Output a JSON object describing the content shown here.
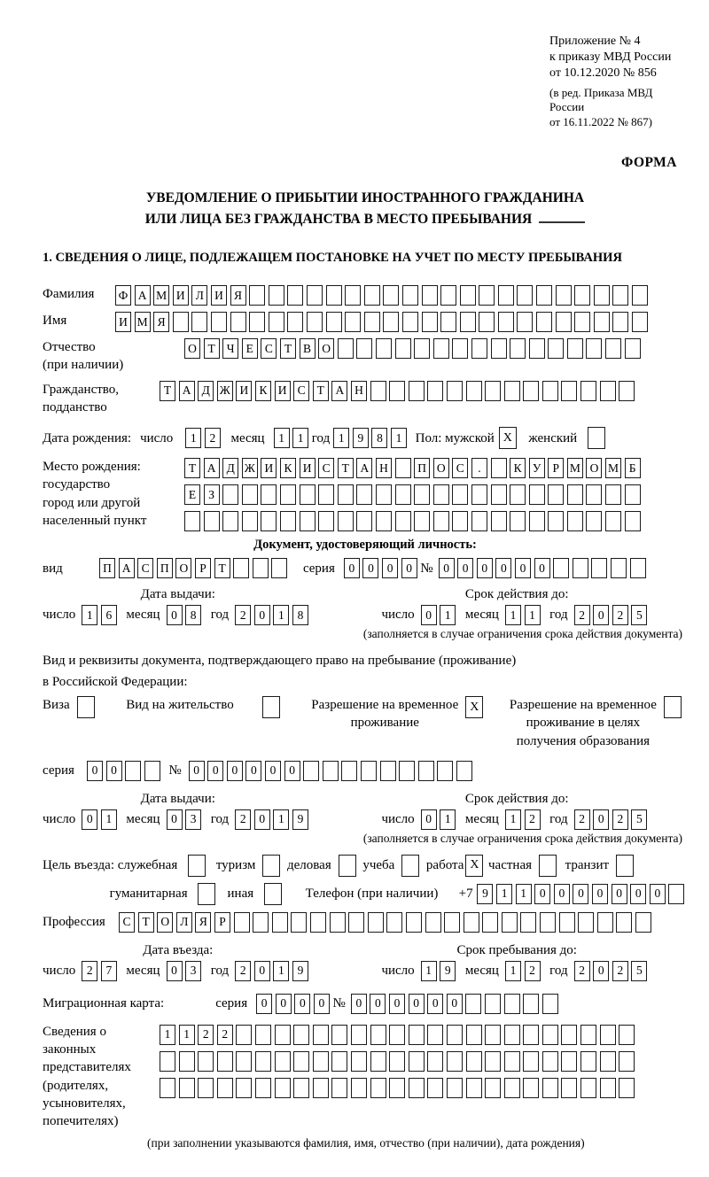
{
  "header": {
    "lines": [
      "Приложение № 4",
      "к приказу МВД России",
      "от 10.12.2020 № 856"
    ],
    "amendment": [
      "(в ред. Приказа МВД России",
      "от 16.11.2022 № 867)"
    ],
    "forma": "ФОРМА"
  },
  "title": {
    "line1": "УВЕДОМЛЕНИЕ О ПРИБЫТИИ ИНОСТРАННОГО ГРАЖДАНИНА",
    "line2": "ИЛИ ЛИЦА БЕЗ ГРАЖДАНСТВА В МЕСТО ПРЕБЫВАНИЯ",
    "section1": "1. СВЕДЕНИЯ О ЛИЦЕ, ПОДЛЕЖАЩЕМ ПОСТАНОВКЕ НА УЧЕТ ПО МЕСТУ ПРЕБЫВАНИЯ"
  },
  "labels": {
    "surname": "Фамилия",
    "name": "Имя",
    "patronymic": [
      "Отчество",
      "(при наличии)"
    ],
    "citizenship": [
      "Гражданство,",
      "подданство"
    ],
    "dob": "Дата рождения:",
    "day": "число",
    "month": "месяц",
    "year": "год",
    "sex_male": "Пол: мужской",
    "sex_female": "женский",
    "birthplace": [
      "Место рождения:",
      "государство",
      "город или другой",
      "населенный пункт"
    ],
    "doc_header": "Документ, удостоверяющий личность:",
    "doc_type": "вид",
    "series": "серия",
    "number": "№",
    "issue_date": "Дата выдачи:",
    "valid_until": "Срок действия до:",
    "valid_note": "(заполняется в случае ограничения срока действия документа)",
    "residence_doc": [
      "Вид и реквизиты документа, подтверждающего право на пребывание (проживание)",
      "в Российской Федерации:"
    ],
    "visa": "Виза",
    "residence_permit": "Вид на жительство",
    "temp_permit": [
      "Разрешение на временное",
      "проживание"
    ],
    "edu_permit": [
      "Разрешение на временное",
      "проживание в целях",
      "получения образования"
    ],
    "purpose": "Цель въезда: служебная",
    "tourism": "туризм",
    "business": "деловая",
    "study": "учеба",
    "work": "работа",
    "private": "частная",
    "transit": "транзит",
    "humanitarian": "гуманитарная",
    "other": "иная",
    "phone": "Телефон (при наличии)",
    "phone_prefix": "+7",
    "profession": "Профессия",
    "entry_date": "Дата въезда:",
    "stay_until": "Срок пребывания до:",
    "migration_card": "Миграционная карта:",
    "guardians": [
      "Сведения о",
      "законных",
      "представителях",
      "(родителях,",
      "усыновителях,",
      "попечителях)"
    ],
    "guardians_note": "(при заполнении указываются фамилия, имя, отчество (при наличии), дата рождения)"
  },
  "fields": {
    "surname": {
      "v": "ФАМИЛИЯ",
      "n": 28
    },
    "name": {
      "v": "ИМЯ",
      "n": 28
    },
    "patronymic": {
      "v": "ОТЧЕСТВО",
      "n": 24
    },
    "citizenship": {
      "v": "ТАДЖИКИСТАН",
      "n": 25
    },
    "dob_day": {
      "v": "12",
      "n": 2
    },
    "dob_month": {
      "v": "11",
      "n": 2
    },
    "dob_year": {
      "v": "1981",
      "n": 4
    },
    "sex_male": {
      "v": "X",
      "n": 1
    },
    "sex_female": {
      "v": "",
      "n": 1
    },
    "birthplace1": {
      "v": "ТАДЖИКИСТАН ПОС. КУРМОМБ",
      "n": 24
    },
    "birthplace2": {
      "v": "ЕЗ",
      "n": 24
    },
    "birthplace3": {
      "v": "",
      "n": 24
    },
    "doc_type": {
      "v": "ПАСПОРТ",
      "n": 10
    },
    "doc_series": {
      "v": "0000",
      "n": 4
    },
    "doc_number": {
      "v": "000000",
      "n": 11
    },
    "doc_issue_day": {
      "v": "16",
      "n": 2
    },
    "doc_issue_month": {
      "v": "08",
      "n": 2
    },
    "doc_issue_year": {
      "v": "2018",
      "n": 4
    },
    "doc_valid_day": {
      "v": "01",
      "n": 2
    },
    "doc_valid_month": {
      "v": "11",
      "n": 2
    },
    "doc_valid_year": {
      "v": "2025",
      "n": 4
    },
    "visa": {
      "v": "",
      "n": 1
    },
    "residence_permit": {
      "v": "",
      "n": 1
    },
    "temp_permit": {
      "v": "X",
      "n": 1
    },
    "edu_permit": {
      "v": "",
      "n": 1
    },
    "permit_series": {
      "v": "00",
      "n": 4
    },
    "permit_number": {
      "v": "000000",
      "n": 15
    },
    "permit_issue_day": {
      "v": "01",
      "n": 2
    },
    "permit_issue_month": {
      "v": "03",
      "n": 2
    },
    "permit_issue_year": {
      "v": "2019",
      "n": 4
    },
    "permit_valid_day": {
      "v": "01",
      "n": 2
    },
    "permit_valid_month": {
      "v": "12",
      "n": 2
    },
    "permit_valid_year": {
      "v": "2025",
      "n": 4
    },
    "purpose_official": {
      "v": "",
      "n": 1
    },
    "purpose_tourism": {
      "v": "",
      "n": 1
    },
    "purpose_business": {
      "v": "",
      "n": 1
    },
    "purpose_study": {
      "v": "",
      "n": 1
    },
    "purpose_work": {
      "v": "X",
      "n": 1
    },
    "purpose_private": {
      "v": "",
      "n": 1
    },
    "purpose_transit": {
      "v": "",
      "n": 1
    },
    "purpose_humanitarian": {
      "v": "",
      "n": 1
    },
    "purpose_other": {
      "v": "",
      "n": 1
    },
    "phone": {
      "v": "9110000000",
      "n": 11
    },
    "profession": {
      "v": "СТОЛЯР",
      "n": 28
    },
    "entry_day": {
      "v": "27",
      "n": 2
    },
    "entry_month": {
      "v": "03",
      "n": 2
    },
    "entry_year": {
      "v": "2019",
      "n": 4
    },
    "stay_day": {
      "v": "19",
      "n": 2
    },
    "stay_month": {
      "v": "12",
      "n": 2
    },
    "stay_year": {
      "v": "2025",
      "n": 4
    },
    "mig_series": {
      "v": "0000",
      "n": 4
    },
    "mig_number": {
      "v": "000000",
      "n": 11
    },
    "guardians1": {
      "v": "1122",
      "n": 25
    },
    "guardians2": {
      "v": "",
      "n": 25
    },
    "guardians3": {
      "v": "",
      "n": 25
    }
  }
}
